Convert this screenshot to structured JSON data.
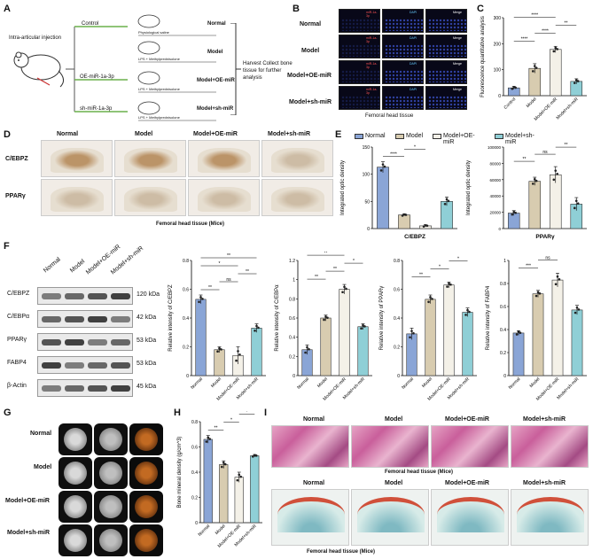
{
  "panel_letters": [
    "A",
    "B",
    "C",
    "D",
    "E",
    "F",
    "G",
    "H",
    "I"
  ],
  "panelA": {
    "injection_label": "Intra-articular injection",
    "arm_labels": [
      "Control",
      "OE-miR-1a-3p",
      "sh-miR-1a-3p"
    ],
    "treatments": [
      "Physiological saline",
      "LPS + Methylprednisolone",
      "LPS + Methylprednisolone",
      "LPS + Methylprednisolone"
    ],
    "group_names": [
      "Normal",
      "Model",
      "Model+OE-miR",
      "Model+sh-miR"
    ],
    "harvest_text": "Harvest Collect bone tissue for further analysis"
  },
  "groups": [
    "Normal",
    "Model",
    "Model+OE-miR",
    "Model+sh-miR"
  ],
  "panelB": {
    "channels": [
      "miR-1a-3p",
      "DAPI",
      "Merge"
    ],
    "footer": "Femoral head tissue"
  },
  "panelD": {
    "markers": [
      "C/EBPZ",
      "PPARγ"
    ],
    "footer": "Femoral head tissue (Mice)"
  },
  "panelF": {
    "proteins": [
      "C/EBPZ",
      "C/EBPα",
      "PPARγ",
      "FABP4",
      "β-Actin"
    ],
    "sizes": [
      "120 kDa",
      "42 kDa",
      "53 kDa",
      "53 kDa",
      "45 kDa"
    ]
  },
  "panelG": {},
  "panelI": {
    "footer1": "Femoral head tissue (Mice)",
    "footer2": "Femoral head tissue (Mice)"
  },
  "colors": {
    "normal": "#8aa5d6",
    "model": "#d8ccb0",
    "oe": "#f4f1e8",
    "sh": "#8fcfd6"
  },
  "chart_data": [
    {
      "id": "C",
      "type": "bar",
      "ylabel": "Fluorescence quantitative analysis",
      "categories": [
        "Control",
        "Model",
        "Model+OE-miR",
        "Model+sh-miR"
      ],
      "values": [
        30,
        105,
        178,
        55
      ],
      "errors": [
        6,
        18,
        12,
        10
      ],
      "ylim": [
        0,
        300
      ],
      "yticks": [
        0,
        100,
        200,
        300
      ],
      "sig": [
        {
          "a": 0,
          "b": 1,
          "t": "****"
        },
        {
          "a": 0,
          "b": 2,
          "t": "****"
        },
        {
          "a": 0,
          "b": 3,
          "t": "ns"
        },
        {
          "a": 1,
          "b": 2,
          "t": "****"
        },
        {
          "a": 1,
          "b": 3,
          "t": "****"
        },
        {
          "a": 2,
          "b": 3,
          "t": "**"
        }
      ]
    },
    {
      "id": "E1",
      "type": "bar",
      "ylabel": "Integrated optic density",
      "xlabel": "C/EBPZ",
      "values": [
        113,
        25,
        5,
        50
      ],
      "errors": [
        10,
        2,
        2,
        8
      ],
      "ylim": [
        0,
        150
      ],
      "yticks": [
        0,
        50,
        100,
        150
      ],
      "sig": [
        {
          "a": 0,
          "b": 1,
          "t": "****"
        },
        {
          "a": 0,
          "b": 2,
          "t": "****"
        },
        {
          "a": 0,
          "b": 3,
          "t": "****"
        },
        {
          "a": 1,
          "b": 2,
          "t": "*"
        },
        {
          "a": 2,
          "b": 3,
          "t": "*"
        }
      ]
    },
    {
      "id": "E2",
      "type": "bar",
      "ylabel": "Integrated optic density",
      "xlabel": "PPARγ",
      "values": [
        19000,
        58000,
        66000,
        30000
      ],
      "errors": [
        3000,
        5000,
        10000,
        8000
      ],
      "ylim": [
        0,
        100000
      ],
      "yticks": [
        0,
        20000,
        40000,
        60000,
        80000,
        100000
      ],
      "sig": [
        {
          "a": 0,
          "b": 1,
          "t": "**"
        },
        {
          "a": 0,
          "b": 2,
          "t": "***"
        },
        {
          "a": 1,
          "b": 2,
          "t": "ns"
        },
        {
          "a": 1,
          "b": 3,
          "t": "*"
        },
        {
          "a": 2,
          "b": 3,
          "t": "**"
        },
        {
          "a": 0,
          "b": 3,
          "t": "ns"
        }
      ]
    },
    {
      "id": "F1",
      "type": "bar",
      "ylabel": "Relative intensity of C/EBPZ",
      "categories": [
        "Normal",
        "Model",
        "Model+OE-miR",
        "Model+sh-miR"
      ],
      "values": [
        0.53,
        0.18,
        0.14,
        0.33
      ],
      "errors": [
        0.03,
        0.02,
        0.06,
        0.03
      ],
      "ylim": [
        0,
        0.8
      ],
      "yticks": [
        0.0,
        0.2,
        0.4,
        0.6,
        0.8
      ],
      "sig": [
        {
          "a": 0,
          "b": 1,
          "t": "**"
        },
        {
          "a": 0,
          "b": 2,
          "t": "*"
        },
        {
          "a": 0,
          "b": 3,
          "t": "**"
        },
        {
          "a": 1,
          "b": 2,
          "t": "ns"
        },
        {
          "a": 2,
          "b": 3,
          "t": "**"
        }
      ]
    },
    {
      "id": "F2",
      "type": "bar",
      "ylabel": "Relative intensity of C/EBPα",
      "categories": [
        "Normal",
        "Model",
        "Model+OE-miR",
        "Model+sh-miR"
      ],
      "values": [
        0.27,
        0.6,
        0.9,
        0.51
      ],
      "errors": [
        0.05,
        0.03,
        0.05,
        0.03
      ],
      "ylim": [
        0,
        1.2
      ],
      "yticks": [
        0.0,
        0.2,
        0.4,
        0.6,
        0.8,
        1.0,
        1.2
      ],
      "sig": [
        {
          "a": 0,
          "b": 1,
          "t": "**"
        },
        {
          "a": 0,
          "b": 2,
          "t": "**"
        },
        {
          "a": 0,
          "b": 3,
          "t": "*"
        },
        {
          "a": 1,
          "b": 2,
          "t": "**"
        },
        {
          "a": 1,
          "b": 3,
          "t": "**"
        },
        {
          "a": 2,
          "b": 3,
          "t": "*"
        }
      ]
    },
    {
      "id": "F3",
      "type": "bar",
      "ylabel": "Relative intensity of PPARγ",
      "categories": [
        "Normal",
        "Model",
        "Model+OE-miR",
        "Model+sh-miR"
      ],
      "values": [
        0.29,
        0.53,
        0.63,
        0.44
      ],
      "errors": [
        0.04,
        0.03,
        0.02,
        0.03
      ],
      "ylim": [
        0,
        0.8
      ],
      "yticks": [
        0.0,
        0.2,
        0.4,
        0.6,
        0.8
      ],
      "sig": [
        {
          "a": 0,
          "b": 1,
          "t": "**"
        },
        {
          "a": 0,
          "b": 2,
          "t": "**"
        },
        {
          "a": 0,
          "b": 3,
          "t": "*"
        },
        {
          "a": 1,
          "b": 2,
          "t": "*"
        },
        {
          "a": 1,
          "b": 3,
          "t": "*"
        },
        {
          "a": 2,
          "b": 3,
          "t": "*"
        }
      ]
    },
    {
      "id": "F4",
      "type": "bar",
      "ylabel": "Relative intensity of FABP4",
      "categories": [
        "Normal",
        "Model",
        "Model+OE-miR",
        "Model+sh-miR"
      ],
      "values": [
        0.37,
        0.71,
        0.83,
        0.57
      ],
      "errors": [
        0.02,
        0.03,
        0.06,
        0.04
      ],
      "ylim": [
        0,
        1.0
      ],
      "yticks": [
        0.0,
        0.2,
        0.4,
        0.6,
        0.8,
        1.0
      ],
      "sig": [
        {
          "a": 0,
          "b": 1,
          "t": "***"
        },
        {
          "a": 1,
          "b": 2,
          "t": "ns"
        },
        {
          "a": 0,
          "b": 2,
          "t": "*"
        },
        {
          "a": 1,
          "b": 3,
          "t": "*"
        },
        {
          "a": 2,
          "b": 3,
          "t": "*"
        },
        {
          "a": 0,
          "b": 3,
          "t": "*"
        }
      ]
    },
    {
      "id": "H",
      "type": "bar",
      "ylabel": "Bone mineral density (g/cm^3)",
      "categories": [
        "Normal",
        "Model",
        "Model+OE-miR",
        "Model+sh-miR"
      ],
      "values": [
        0.66,
        0.46,
        0.36,
        0.53
      ],
      "errors": [
        0.03,
        0.03,
        0.04,
        0.01
      ],
      "ylim": [
        0,
        0.8
      ],
      "yticks": [
        0.0,
        0.2,
        0.4,
        0.6,
        0.8
      ],
      "sig": [
        {
          "a": 0,
          "b": 1,
          "t": "**"
        },
        {
          "a": 0,
          "b": 2,
          "t": "***"
        },
        {
          "a": 0,
          "b": 3,
          "t": "*"
        },
        {
          "a": 1,
          "b": 2,
          "t": "*"
        },
        {
          "a": 2,
          "b": 3,
          "t": "*"
        }
      ]
    }
  ]
}
